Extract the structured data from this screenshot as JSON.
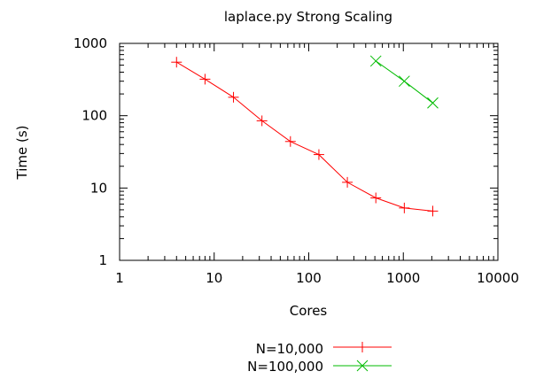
{
  "chart_data": {
    "type": "line",
    "title": "laplace.py Strong Scaling",
    "xlabel": "Cores",
    "ylabel": "Time (s)",
    "x_scale": "log",
    "y_scale": "log",
    "xlim": [
      1,
      10000
    ],
    "ylim": [
      1,
      1000
    ],
    "x_ticks": [
      1,
      10,
      100,
      1000,
      10000
    ],
    "x_tick_labels": [
      "1",
      "10",
      "100",
      "1000",
      "10000"
    ],
    "y_ticks": [
      1,
      10,
      100,
      1000
    ],
    "y_tick_labels": [
      "1",
      "10",
      "100",
      "1000"
    ],
    "grid": false,
    "legend_position": "bottom-center",
    "series": [
      {
        "name": "N=10,000",
        "color": "#ff0000",
        "marker": "plus",
        "x": [
          4,
          8,
          16,
          32,
          64,
          128,
          256,
          512,
          1024,
          2048
        ],
        "y": [
          550,
          320,
          180,
          85,
          44,
          29,
          12,
          7.3,
          5.3,
          4.8
        ]
      },
      {
        "name": "N=100,000",
        "color": "#00bb00",
        "marker": "cross",
        "x": [
          512,
          1024,
          2048
        ],
        "y": [
          570,
          300,
          150
        ]
      }
    ]
  }
}
